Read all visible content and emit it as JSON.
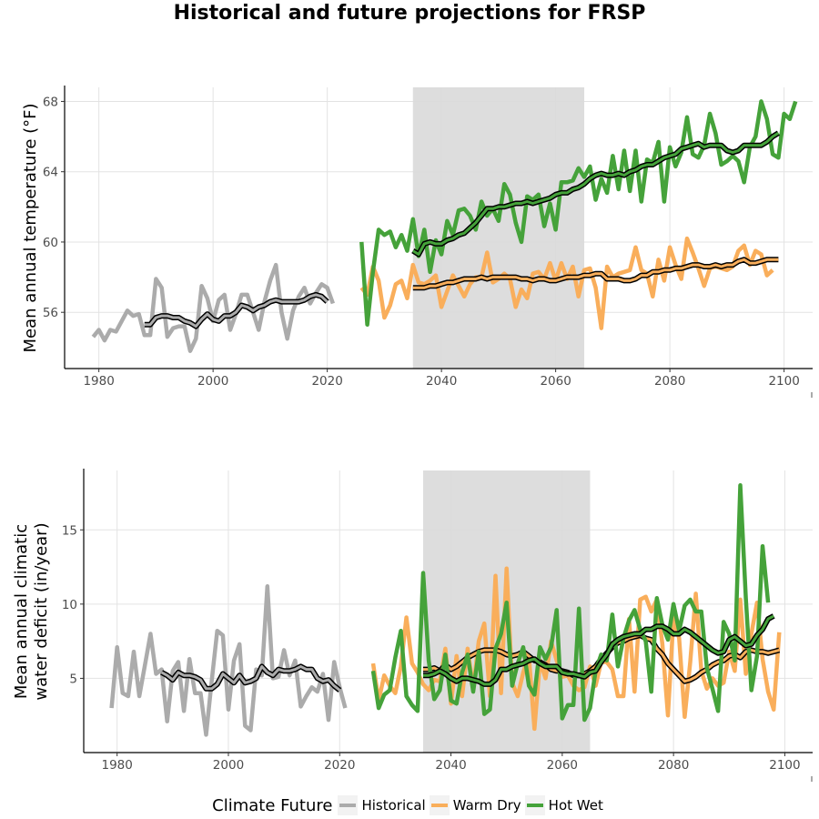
{
  "title": "Historical and future projections for FRSP",
  "legend": {
    "title": "Climate Future",
    "items": [
      {
        "label": "Historical",
        "color": "#ABABAB"
      },
      {
        "label": "Warm Dry",
        "color": "#F9AE5B"
      },
      {
        "label": "Hot Wet",
        "color": "#45A23A"
      }
    ]
  },
  "chart_data": [
    {
      "type": "line",
      "ylabel": "Mean annual temperature (°F)",
      "xlim": [
        1974,
        2105
      ],
      "ylim": [
        52.8,
        68.8
      ],
      "x_ticks": [
        1980,
        2000,
        2020,
        2040,
        2060,
        2080,
        2100
      ],
      "y_ticks": [
        56,
        60,
        64,
        68
      ],
      "shaded_period": [
        2035,
        2065
      ],
      "grid": true,
      "series": [
        {
          "name": "Historical",
          "x_start": 1979,
          "values": [
            54.6,
            55.0,
            54.4,
            55.0,
            54.9,
            55.5,
            56.1,
            55.8,
            55.9,
            54.7,
            54.7,
            57.9,
            57.4,
            54.6,
            55.1,
            55.2,
            55.2,
            53.8,
            54.5,
            57.5,
            56.8,
            55.5,
            56.7,
            57.0,
            55.0,
            55.9,
            57.0,
            57.0,
            56.0,
            55.0,
            56.6,
            57.8,
            58.7,
            56.0,
            54.5,
            56.1,
            56.9,
            57.4,
            56.5,
            57.1,
            57.6,
            57.4,
            56.5
          ]
        },
        {
          "name": "Historical",
          "x_start": 1988,
          "smoothed": true,
          "values": [
            55.3,
            55.3,
            55.7,
            55.8,
            55.8,
            55.7,
            55.7,
            55.5,
            55.4,
            55.2,
            55.6,
            55.9,
            55.6,
            55.5,
            55.8,
            55.8,
            56.0,
            56.4,
            56.3,
            56.1,
            56.3,
            56.4,
            56.6,
            56.7,
            56.6,
            56.6,
            56.6,
            56.6,
            56.7,
            56.9,
            57.0,
            56.9,
            56.6
          ]
        },
        {
          "name": "Warm Dry",
          "x_start": 2026,
          "values": [
            57.4,
            57.0,
            58.6,
            57.8,
            55.7,
            56.4,
            57.6,
            57.8,
            56.8,
            58.7,
            57.7,
            57.6,
            57.8,
            58.1,
            56.3,
            57.2,
            58.1,
            57.5,
            56.9,
            57.6,
            58.0,
            58.0,
            59.4,
            57.7,
            57.9,
            58.2,
            57.9,
            56.3,
            57.3,
            56.8,
            58.2,
            58.3,
            57.9,
            58.8,
            57.8,
            58.8,
            57.9,
            58.6,
            56.9,
            58.4,
            58.5,
            57.4,
            55.1,
            58.6,
            58.0,
            58.2,
            58.3,
            58.4,
            59.7,
            58.4,
            58.2,
            56.9,
            59.0,
            57.8,
            59.7,
            58.7,
            57.9,
            60.2,
            59.4,
            58.5,
            57.5,
            58.5,
            58.6,
            58.5,
            58.4,
            58.6,
            59.5,
            59.8,
            58.7,
            59.5,
            59.3,
            58.1,
            58.4
          ]
        },
        {
          "name": "Warm Dry",
          "x_start": 2035,
          "smoothed": true,
          "values": [
            57.4,
            57.4,
            57.4,
            57.5,
            57.5,
            57.6,
            57.7,
            57.7,
            57.8,
            57.9,
            57.9,
            57.9,
            58.0,
            57.9,
            58.0,
            58.0,
            58.0,
            58.0,
            58.0,
            57.9,
            57.9,
            57.8,
            57.9,
            57.9,
            57.8,
            57.8,
            57.9,
            58.0,
            58.0,
            58.0,
            58.1,
            58.1,
            58.2,
            58.2,
            57.9,
            57.9,
            57.9,
            57.8,
            57.8,
            57.9,
            58.1,
            58.1,
            58.3,
            58.3,
            58.4,
            58.4,
            58.5,
            58.5,
            58.6,
            58.7,
            58.7,
            58.6,
            58.6,
            58.7,
            58.6,
            58.7,
            58.7,
            58.9,
            59.0,
            58.8,
            58.8,
            58.9,
            59.0,
            59.0,
            59.0
          ]
        },
        {
          "name": "Hot Wet",
          "x_start": 2026,
          "values": [
            60.0,
            55.3,
            58.3,
            60.7,
            60.4,
            60.6,
            59.7,
            60.4,
            59.5,
            61.3,
            59.2,
            60.7,
            58.3,
            60.1,
            59.3,
            61.2,
            60.4,
            61.8,
            61.9,
            61.5,
            60.7,
            62.3,
            61.5,
            61.9,
            61.2,
            63.3,
            62.7,
            61.1,
            60.0,
            62.6,
            62.4,
            62.7,
            60.9,
            62.2,
            60.7,
            63.4,
            63.4,
            63.5,
            64.2,
            63.7,
            64.3,
            62.4,
            63.6,
            62.8,
            64.9,
            63.0,
            65.2,
            62.9,
            65.2,
            62.3,
            64.7,
            64.5,
            65.7,
            62.3,
            65.4,
            64.3,
            65.1,
            67.1,
            65.0,
            64.8,
            65.5,
            67.3,
            66.2,
            64.4,
            64.6,
            64.9,
            64.6,
            63.4,
            65.4,
            66.0,
            68.0,
            67.0,
            65.0,
            64.8,
            67.3,
            67.0,
            68.0
          ]
        },
        {
          "name": "Hot Wet",
          "x_start": 2035,
          "smoothed": true,
          "values": [
            59.5,
            59.3,
            59.9,
            60.0,
            59.9,
            59.9,
            60.1,
            60.2,
            60.4,
            60.5,
            60.8,
            61.1,
            61.5,
            61.9,
            61.9,
            62.0,
            62.0,
            62.1,
            62.2,
            62.2,
            62.3,
            62.2,
            62.3,
            62.4,
            62.5,
            62.7,
            62.8,
            62.8,
            63.0,
            63.1,
            63.3,
            63.6,
            63.8,
            63.9,
            63.8,
            63.8,
            63.9,
            63.8,
            64.0,
            64.1,
            64.3,
            64.4,
            64.4,
            64.6,
            64.8,
            64.9,
            65.0,
            65.3,
            65.4,
            65.5,
            65.6,
            65.4,
            65.5,
            65.5,
            65.5,
            65.2,
            65.1,
            65.2,
            65.5,
            65.5,
            65.5,
            65.5,
            65.7,
            66.0,
            66.2
          ]
        }
      ]
    },
    {
      "type": "line",
      "ylabel": "Mean annual climatic water deficit (in/year)",
      "xlim": [
        1974,
        2105
      ],
      "ylim": [
        0.0,
        19.0
      ],
      "x_ticks": [
        1980,
        2000,
        2020,
        2040,
        2060,
        2080,
        2100
      ],
      "y_ticks": [
        5,
        10,
        15
      ],
      "shaded_period": [
        2035,
        2065
      ],
      "grid": true,
      "series": [
        {
          "name": "Historical",
          "x_start": 1979,
          "values": [
            3.0,
            7.1,
            4.0,
            3.8,
            6.8,
            3.8,
            5.9,
            8.0,
            5.3,
            5.6,
            2.1,
            5.5,
            6.1,
            2.8,
            6.3,
            4.0,
            4.0,
            1.2,
            4.8,
            8.2,
            7.9,
            2.9,
            6.2,
            7.3,
            1.8,
            1.5,
            5.6,
            5.2,
            11.2,
            5.0,
            5.1,
            6.9,
            5.2,
            6.2,
            3.1,
            3.8,
            4.4,
            4.1,
            5.3,
            2.2,
            6.1,
            4.4,
            3.0
          ]
        },
        {
          "name": "Historical",
          "x_start": 1988,
          "smoothed": true,
          "values": [
            5.4,
            5.2,
            4.9,
            5.4,
            5.2,
            5.2,
            5.1,
            4.9,
            4.3,
            4.3,
            4.6,
            5.3,
            5.0,
            4.7,
            5.2,
            4.7,
            4.8,
            5.0,
            5.8,
            5.4,
            5.2,
            5.6,
            5.5,
            5.5,
            5.6,
            5.8,
            5.6,
            5.6,
            5.0,
            4.8,
            4.9,
            4.5,
            4.2
          ]
        },
        {
          "name": "Warm Dry",
          "x_start": 2026,
          "values": [
            6.0,
            3.5,
            5.2,
            4.5,
            4.0,
            5.8,
            9.1,
            6.0,
            5.4,
            4.6,
            4.2,
            4.9,
            4.8,
            7.0,
            3.3,
            6.5,
            3.8,
            7.0,
            4.3,
            7.5,
            8.7,
            3.8,
            11.9,
            4.0,
            12.4,
            4.7,
            3.8,
            5.4,
            6.5,
            1.6,
            6.2,
            5.0,
            7.5,
            6.2,
            5.1,
            5.2,
            4.5,
            4.2,
            4.4,
            5.8,
            4.5,
            6.1,
            6.1,
            5.6,
            3.8,
            3.8,
            9.0,
            4.1,
            10.3,
            10.5,
            9.5,
            10.3,
            7.3,
            2.5,
            9.1,
            7.7,
            2.4,
            6.1,
            10.7,
            5.5,
            4.3,
            5.0,
            4.5,
            4.7,
            6.8,
            5.5,
            10.3,
            5.3,
            8.0,
            10.1,
            6.3,
            4.1,
            2.9,
            8.1
          ]
        },
        {
          "name": "Warm Dry",
          "x_start": 2035,
          "smoothed": true,
          "values": [
            5.6,
            5.6,
            5.7,
            5.5,
            5.9,
            5.6,
            5.8,
            6.1,
            6.4,
            6.6,
            6.8,
            6.9,
            6.9,
            6.9,
            6.8,
            6.6,
            6.5,
            6.6,
            6.8,
            6.5,
            6.2,
            6.1,
            5.9,
            5.6,
            5.5,
            5.5,
            5.4,
            5.2,
            5.2,
            5.3,
            5.5,
            5.8,
            6.3,
            6.7,
            7.1,
            7.4,
            7.5,
            7.7,
            7.8,
            7.9,
            7.7,
            7.6,
            7.0,
            6.6,
            6.0,
            5.6,
            5.2,
            4.8,
            4.9,
            5.1,
            5.4,
            5.6,
            5.9,
            6.1,
            6.2,
            6.5,
            6.6,
            6.4,
            6.8,
            6.9,
            6.8,
            6.8,
            6.7,
            6.8,
            6.9
          ]
        },
        {
          "name": "Hot Wet",
          "x_start": 2026,
          "values": [
            5.5,
            3.0,
            3.9,
            4.2,
            6.4,
            8.2,
            3.8,
            3.2,
            2.8,
            12.1,
            6.2,
            3.6,
            4.2,
            6.6,
            3.5,
            3.3,
            5.4,
            6.6,
            4.1,
            6.8,
            2.6,
            2.9,
            7.0,
            8.0,
            10.1,
            4.5,
            6.0,
            7.1,
            4.5,
            3.9,
            7.1,
            6.3,
            7.1,
            9.6,
            2.3,
            3.2,
            3.2,
            9.7,
            2.2,
            3.0,
            5.5,
            6.6,
            6.2,
            9.3,
            5.8,
            7.7,
            8.9,
            9.6,
            8.3,
            7.5,
            4.1,
            10.4,
            8.6,
            7.6,
            10.0,
            8.2,
            9.9,
            10.3,
            9.5,
            9.5,
            5.7,
            4.3,
            2.8,
            8.8,
            8.0,
            6.2,
            18.0,
            10.4,
            4.2,
            6.5,
            13.9,
            10.1
          ]
        },
        {
          "name": "Hot Wet",
          "x_start": 2035,
          "smoothed": true,
          "values": [
            5.2,
            5.2,
            5.3,
            5.5,
            5.3,
            5.0,
            4.8,
            5.0,
            5.0,
            4.9,
            4.8,
            4.6,
            4.6,
            4.9,
            5.6,
            5.6,
            5.8,
            5.9,
            6.0,
            6.2,
            6.3,
            6.0,
            5.8,
            5.8,
            5.8,
            5.4,
            5.3,
            5.3,
            5.2,
            5.1,
            5.4,
            5.5,
            6.1,
            6.6,
            7.3,
            7.6,
            7.8,
            7.9,
            8.0,
            8.0,
            8.3,
            8.3,
            8.5,
            8.5,
            8.3,
            8.0,
            8.0,
            8.3,
            8.1,
            7.8,
            7.5,
            7.2,
            6.9,
            6.7,
            6.8,
            7.6,
            7.8,
            7.5,
            7.2,
            7.3,
            7.9,
            8.3,
            9.0,
            9.2
          ]
        }
      ]
    }
  ]
}
